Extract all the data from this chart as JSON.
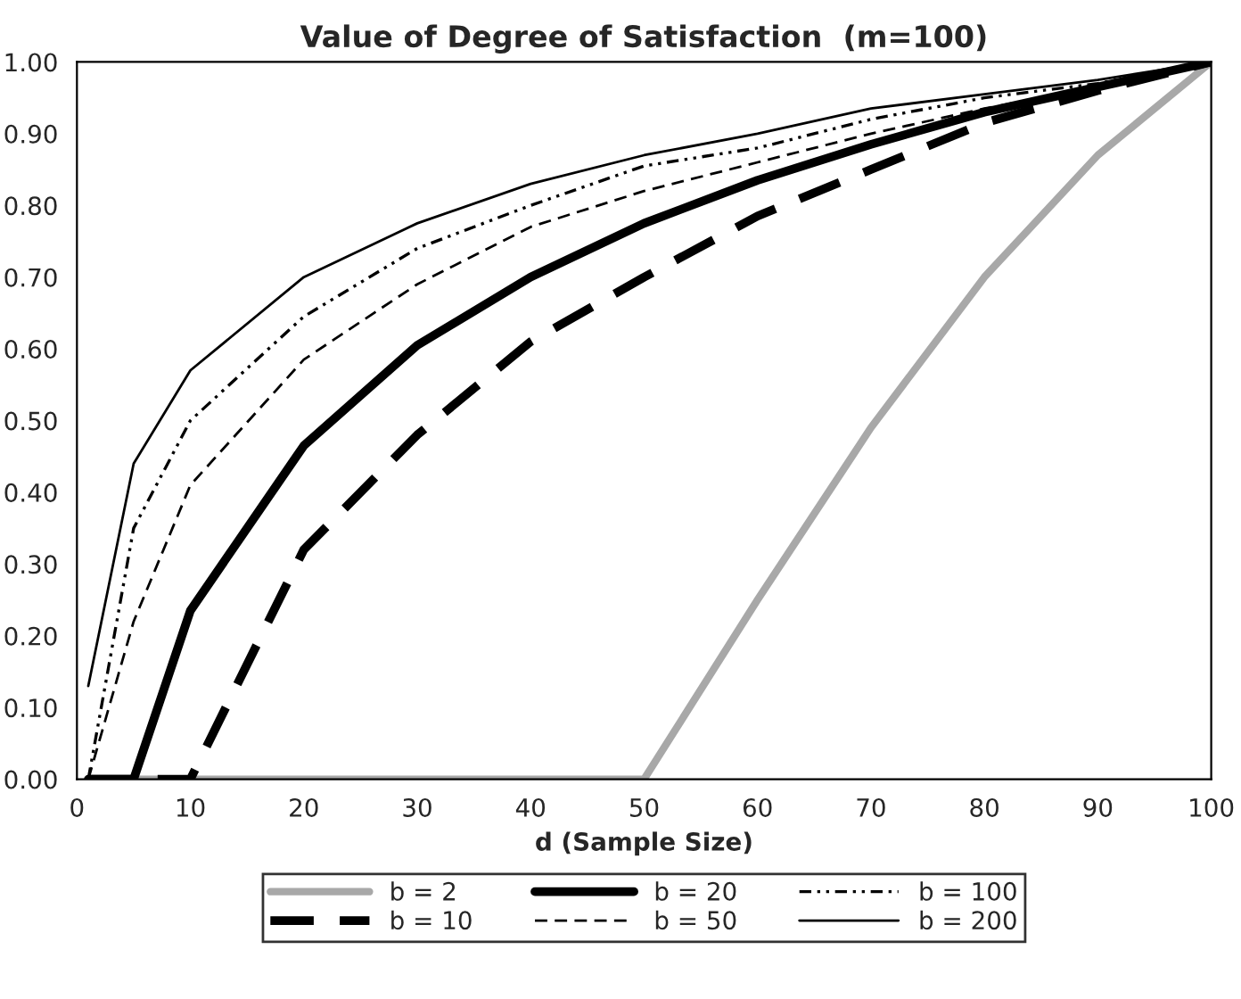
{
  "chart_data": {
    "type": "line",
    "title": "Value of Degree of Satisfaction  (m=100)",
    "xlabel": "d (Sample Size)",
    "x": [
      1,
      5,
      10,
      20,
      30,
      40,
      50,
      60,
      70,
      80,
      90,
      100
    ],
    "series": [
      {
        "name": "b = 2",
        "color": "#a8a8a8",
        "line_style": "solid",
        "values": [
          0,
          0,
          0,
          0,
          0,
          0,
          0,
          0.25,
          0.49,
          0.7,
          0.87,
          1.0
        ]
      },
      {
        "name": "b = 10",
        "color": "#000000",
        "line_style": "dashed",
        "values": [
          0,
          0,
          0,
          0.32,
          0.48,
          0.61,
          0.7,
          0.785,
          0.85,
          0.915,
          0.96,
          1.0
        ]
      },
      {
        "name": "b = 20",
        "color": "#000000",
        "line_style": "solid",
        "values": [
          0,
          0,
          0.235,
          0.465,
          0.605,
          0.7,
          0.775,
          0.835,
          0.885,
          0.93,
          0.965,
          1.0
        ]
      },
      {
        "name": "b = 50",
        "color": "#000000",
        "line_style": "dashed",
        "values": [
          0,
          0.22,
          0.41,
          0.585,
          0.69,
          0.77,
          0.82,
          0.86,
          0.9,
          0.935,
          0.965,
          1.0
        ]
      },
      {
        "name": "b = 100",
        "color": "#000000",
        "line_style": "dotted",
        "values": [
          0,
          0.35,
          0.5,
          0.645,
          0.74,
          0.8,
          0.855,
          0.88,
          0.92,
          0.95,
          0.97,
          1.0
        ]
      },
      {
        "name": "b = 200",
        "color": "#000000",
        "line_style": "solid",
        "values": [
          0.13,
          0.44,
          0.57,
          0.7,
          0.775,
          0.83,
          0.87,
          0.9,
          0.935,
          0.955,
          0.975,
          1.0
        ]
      }
    ],
    "xlim": [
      0,
      100
    ],
    "xticks": [
      0,
      10,
      20,
      30,
      40,
      50,
      60,
      70,
      80,
      90,
      100
    ],
    "ylim": [
      0,
      1
    ],
    "yticks": [
      {
        "value": 0,
        "label": "0.00"
      },
      {
        "value": 0.1,
        "label": "0.10"
      },
      {
        "value": 0.2,
        "label": "0.20"
      },
      {
        "value": 0.3,
        "label": "0.30"
      },
      {
        "value": 0.4,
        "label": "0.40"
      },
      {
        "value": 0.5,
        "label": "0.50"
      },
      {
        "value": 0.6,
        "label": "0.60"
      },
      {
        "value": 0.7,
        "label": "0.70"
      },
      {
        "value": 0.8,
        "label": "0.80"
      },
      {
        "value": 0.9,
        "label": "0.90"
      },
      {
        "value": 1,
        "label": "1.00"
      }
    ],
    "grid": false,
    "legend": "bottom",
    "marker": "none"
  }
}
